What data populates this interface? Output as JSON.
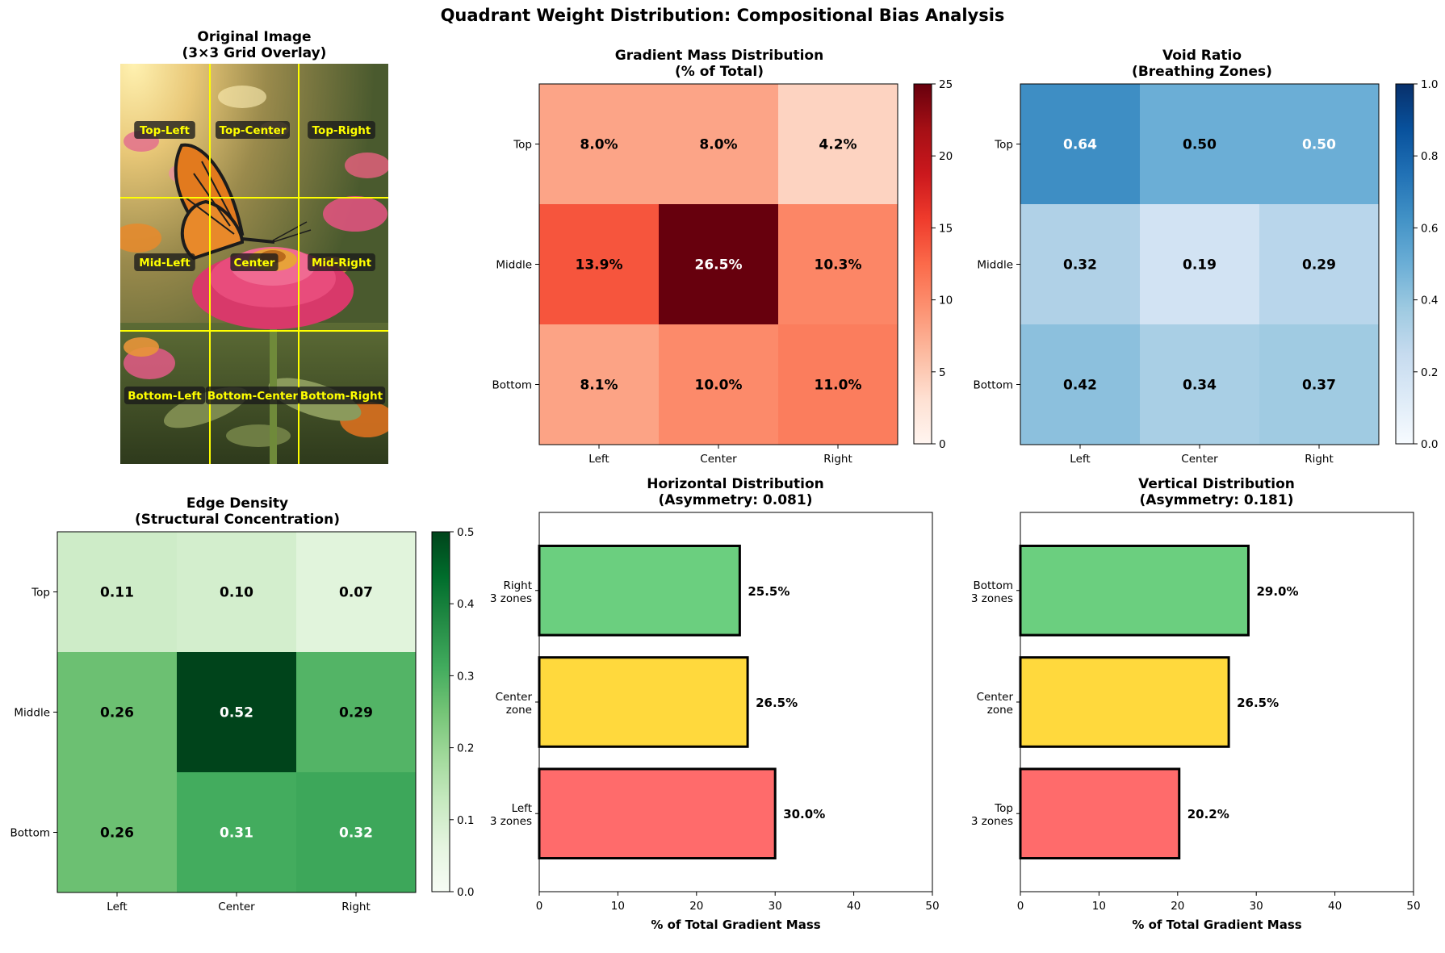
{
  "figure_title": "Quadrant Weight Distribution: Compositional Bias Analysis",
  "photo": {
    "title_line1": "Original Image",
    "title_line2": "(3×3 Grid Overlay)",
    "labels": [
      "Top-Left",
      "Top-Center",
      "Top-Right",
      "Mid-Left",
      "Center",
      "Mid-Right",
      "Bottom-Left",
      "Bottom-Center",
      "Bottom-Right"
    ]
  },
  "colors": {
    "reds": [
      "#fff5f0",
      "#fee0d2",
      "#fcbba1",
      "#fc9272",
      "#fb6a4a",
      "#ef3b2c",
      "#cb181d",
      "#a50f15",
      "#67000d"
    ],
    "blues": [
      "#f7fbff",
      "#deebf7",
      "#c6dbef",
      "#9ecae1",
      "#6baed6",
      "#4292c6",
      "#2171b5",
      "#08519c",
      "#08306b"
    ],
    "greens": [
      "#f7fcf5",
      "#e5f5e0",
      "#c7e9c0",
      "#a1d99b",
      "#74c476",
      "#41ab5d",
      "#238b45",
      "#006d2c",
      "#00441b"
    ],
    "bar_left": "#ff6b6b",
    "bar_center": "#ffd93d",
    "bar_right": "#6bcf7f"
  },
  "chart_data": [
    {
      "type": "heatmap",
      "title_line1": "Gradient Mass Distribution",
      "title_line2": "(% of Total)",
      "xticklabels": [
        "Left",
        "Center",
        "Right"
      ],
      "yticklabels": [
        "Top",
        "Middle",
        "Bottom"
      ],
      "values": [
        [
          8.0,
          8.0,
          4.2
        ],
        [
          13.9,
          26.5,
          10.3
        ],
        [
          8.1,
          10.0,
          11.0
        ]
      ],
      "cell_labels": [
        [
          "8.0%",
          "8.0%",
          "4.2%"
        ],
        [
          "13.9%",
          "26.5%",
          "10.3%"
        ],
        [
          "8.1%",
          "10.0%",
          "11.0%"
        ]
      ],
      "vmin": 0,
      "vmax": 25,
      "cbar_ticks": [
        0,
        5,
        10,
        15,
        20,
        25
      ],
      "cbar_ticklabels": [
        "0",
        "5",
        "10",
        "15",
        "20",
        "25"
      ],
      "cmap": "reds"
    },
    {
      "type": "heatmap",
      "title_line1": "Void Ratio",
      "title_line2": "(Breathing Zones)",
      "xticklabels": [
        "Left",
        "Center",
        "Right"
      ],
      "yticklabels": [
        "Top",
        "Middle",
        "Bottom"
      ],
      "values": [
        [
          0.64,
          0.5,
          0.5
        ],
        [
          0.32,
          0.19,
          0.29
        ],
        [
          0.42,
          0.34,
          0.37
        ]
      ],
      "cell_labels": [
        [
          "0.64",
          "0.50",
          "0.50"
        ],
        [
          "0.32",
          "0.19",
          "0.29"
        ],
        [
          "0.42",
          "0.34",
          "0.37"
        ]
      ],
      "cell_label_white": [
        [
          true,
          false,
          true
        ],
        [
          false,
          false,
          false
        ],
        [
          false,
          false,
          false
        ]
      ],
      "vmin": 0,
      "vmax": 1,
      "cbar_ticks": [
        0,
        0.2,
        0.4,
        0.6,
        0.8,
        1.0
      ],
      "cbar_ticklabels": [
        "0.0",
        "0.2",
        "0.4",
        "0.6",
        "0.8",
        "1.0"
      ],
      "cmap": "blues"
    },
    {
      "type": "heatmap",
      "title_line1": "Edge Density",
      "title_line2": "(Structural Concentration)",
      "xticklabels": [
        "Left",
        "Center",
        "Right"
      ],
      "yticklabels": [
        "Top",
        "Middle",
        "Bottom"
      ],
      "values": [
        [
          0.11,
          0.1,
          0.07
        ],
        [
          0.26,
          0.52,
          0.29
        ],
        [
          0.26,
          0.31,
          0.32
        ]
      ],
      "cell_labels": [
        [
          "0.11",
          "0.10",
          "0.07"
        ],
        [
          "0.26",
          "0.52",
          "0.29"
        ],
        [
          "0.26",
          "0.31",
          "0.32"
        ]
      ],
      "vmin": 0,
      "vmax": 0.5,
      "cbar_ticks": [
        0,
        0.1,
        0.2,
        0.3,
        0.4,
        0.5
      ],
      "cbar_ticklabels": [
        "0.0",
        "0.1",
        "0.2",
        "0.3",
        "0.4",
        "0.5"
      ],
      "cmap": "greens"
    },
    {
      "type": "bar",
      "orientation": "horizontal",
      "title_line1": "Horizontal Distribution",
      "title_line2": "(Asymmetry: 0.081)",
      "categories": [
        [
          "Left",
          "3 zones"
        ],
        [
          "Center",
          "zone"
        ],
        [
          "Right",
          "3 zones"
        ]
      ],
      "values": [
        30.0,
        26.5,
        25.5
      ],
      "value_labels": [
        "30.0%",
        "26.5%",
        "25.5%"
      ],
      "xlabel": "% of Total Gradient Mass",
      "xlim": [
        0,
        50
      ],
      "xticks": [
        0,
        10,
        20,
        30,
        40,
        50
      ]
    },
    {
      "type": "bar",
      "orientation": "horizontal",
      "title_line1": "Vertical Distribution",
      "title_line2": "(Asymmetry: 0.181)",
      "categories": [
        [
          "Top",
          "3 zones"
        ],
        [
          "Center",
          "zone"
        ],
        [
          "Bottom",
          "3 zones"
        ]
      ],
      "values": [
        20.2,
        26.5,
        29.0
      ],
      "value_labels": [
        "20.2%",
        "26.5%",
        "29.0%"
      ],
      "xlabel": "% of Total Gradient Mass",
      "xlim": [
        0,
        50
      ],
      "xticks": [
        0,
        10,
        20,
        30,
        40,
        50
      ]
    }
  ]
}
